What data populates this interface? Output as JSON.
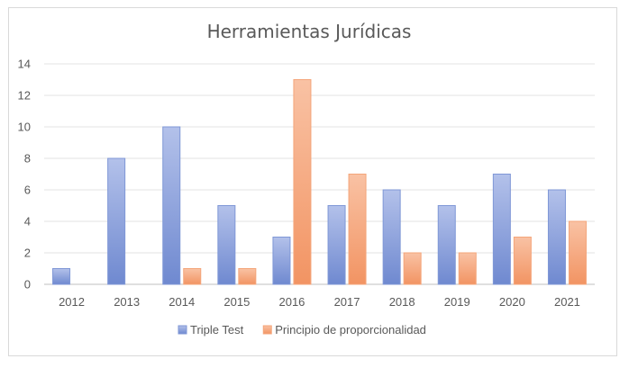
{
  "chart_data": {
    "type": "bar",
    "title": "Herramientas Jurídicas",
    "xlabel": "",
    "ylabel": "",
    "categories": [
      "2012",
      "2013",
      "2014",
      "2015",
      "2016",
      "2017",
      "2018",
      "2019",
      "2020",
      "2021"
    ],
    "series": [
      {
        "name": "Triple Test",
        "values": [
          1,
          8,
          10,
          5,
          3,
          5,
          6,
          5,
          7,
          6
        ],
        "color": "#7f97d6"
      },
      {
        "name": "Principio de proporcionalidad",
        "values": [
          0,
          0,
          1,
          1,
          13,
          7,
          2,
          2,
          3,
          4
        ],
        "color": "#f4a57a"
      }
    ],
    "ylim": [
      0,
      14
    ],
    "yticks": [
      0,
      2,
      4,
      6,
      8,
      10,
      12,
      14
    ],
    "grid": true,
    "legend_position": "bottom"
  }
}
